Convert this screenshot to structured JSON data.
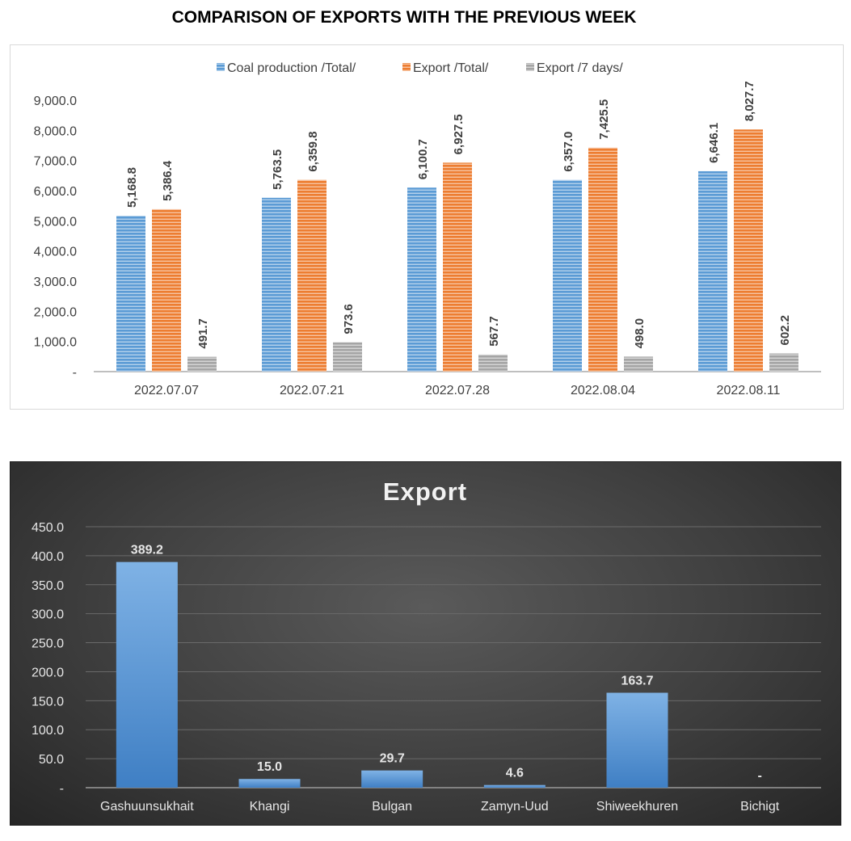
{
  "page": {
    "title": "COMPARISON OF EXPORTS WITH THE PREVIOUS WEEK"
  },
  "chart_data": [
    {
      "type": "bar",
      "title": "",
      "categories": [
        "2022.07.07",
        "2022.07.21",
        "2022.07.28",
        "2022.08.04",
        "2022.08.11"
      ],
      "series": [
        {
          "name": "Coal production /Total/",
          "color": "#5b9bd5",
          "values": [
            5168.8,
            5763.5,
            6100.7,
            6357.0,
            6646.1
          ],
          "labels": [
            "5,168.8",
            "5,763.5",
            "6,100.7",
            "6,357.0",
            "6,646.1"
          ]
        },
        {
          "name": "Export /Total/",
          "color": "#ed7d31",
          "values": [
            5386.4,
            6359.8,
            6927.5,
            7425.5,
            8027.7
          ],
          "labels": [
            "5,386.4",
            "6,359.8",
            "6,927.5",
            "7,425.5",
            "8,027.7"
          ]
        },
        {
          "name": "Export /7 days/",
          "color": "#a5a5a5",
          "values": [
            491.7,
            973.6,
            567.7,
            498.0,
            602.2
          ],
          "labels": [
            "491.7",
            "973.6",
            "567.7",
            "498.0",
            "602.2"
          ]
        }
      ],
      "yticks": [
        0,
        1000,
        2000,
        3000,
        4000,
        5000,
        6000,
        7000,
        8000,
        9000
      ],
      "ytick_labels": [
        "-",
        "1,000.0",
        "2,000.0",
        "3,000.0",
        "4,000.0",
        "5,000.0",
        "6,000.0",
        "7,000.0",
        "8,000.0",
        "9,000.0"
      ],
      "ylim": [
        0,
        9000
      ],
      "legend": "top",
      "grid": false
    },
    {
      "type": "bar",
      "title": "Export",
      "categories": [
        "Gashuunsukhait",
        "Khangi",
        "Bulgan",
        "Zamyn-Uud",
        "Shiweekhuren",
        "Bichigt"
      ],
      "values": [
        389.2,
        15.0,
        29.7,
        4.6,
        163.7,
        0
      ],
      "labels": [
        "389.2",
        "15.0",
        "29.7",
        "4.6",
        "163.7",
        "-"
      ],
      "color": "#5b9bd5",
      "yticks": [
        0,
        50,
        100,
        150,
        200,
        250,
        300,
        350,
        400,
        450
      ],
      "ytick_labels": [
        "-",
        "50.0",
        "100.0",
        "150.0",
        "200.0",
        "250.0",
        "300.0",
        "350.0",
        "400.0",
        "450.0"
      ],
      "ylim": [
        0,
        450
      ],
      "grid": true
    }
  ]
}
